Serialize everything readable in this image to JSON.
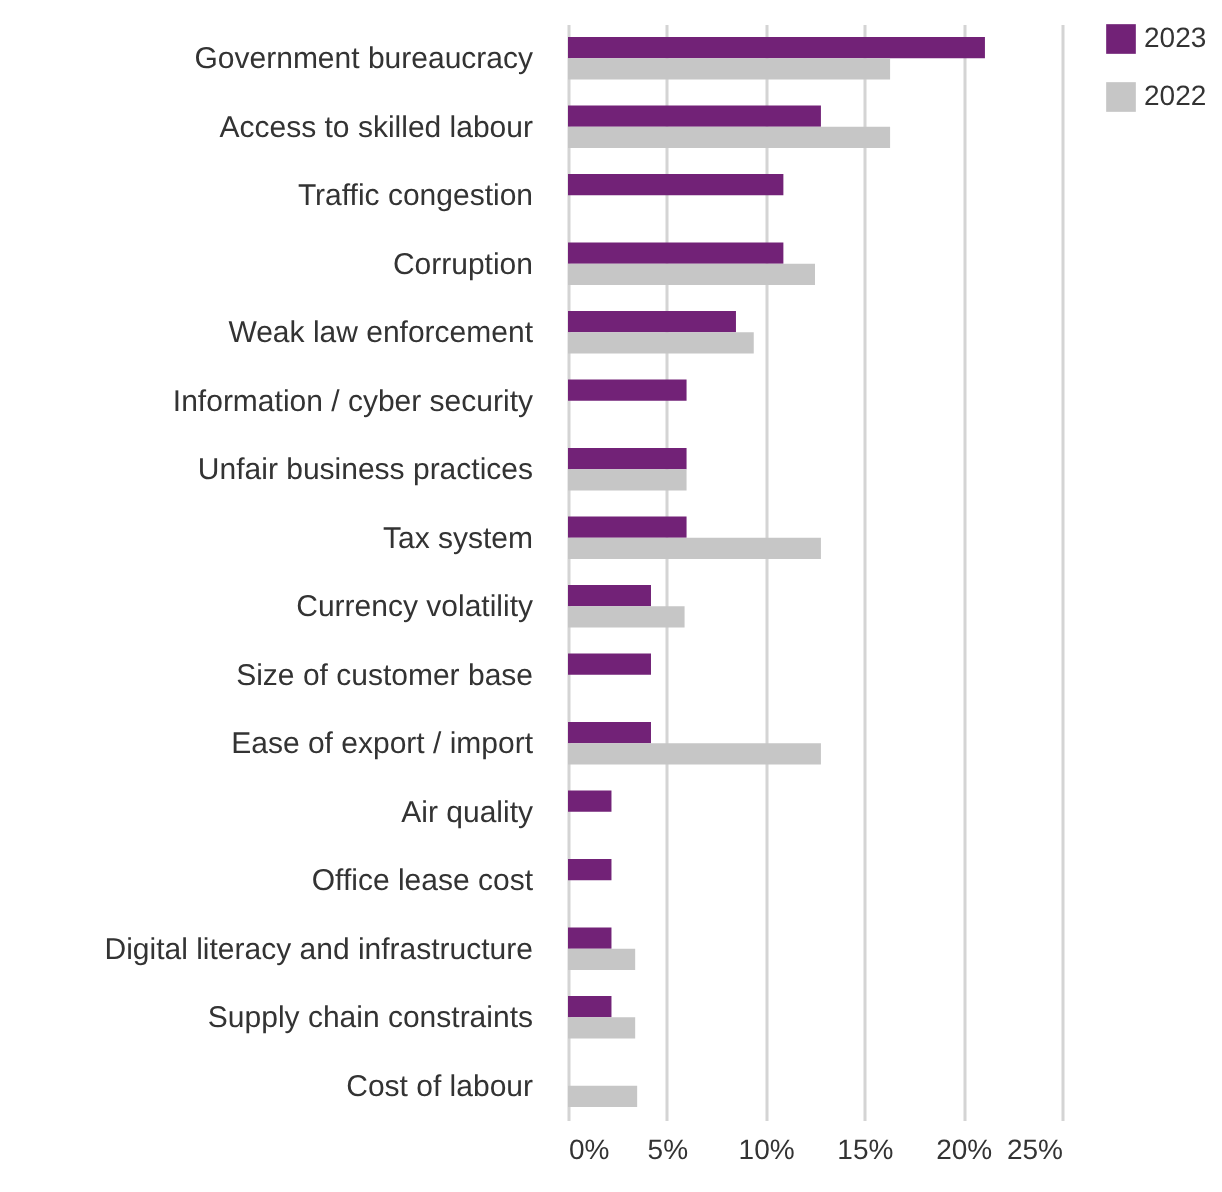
{
  "chart_data": {
    "type": "bar",
    "orientation": "horizontal",
    "categories": [
      "Government bureaucracy",
      "Access to skilled labour",
      "Traffic congestion",
      "Corruption",
      "Weak law enforcement",
      "Information / cyber security",
      "Unfair business practices",
      "Tax system",
      "Currency volatility",
      "Size of customer base",
      "Ease of export / import",
      "Air quality",
      "Office lease cost",
      "Digital literacy and infrastructure",
      "Supply chain constraints",
      "Cost of labour"
    ],
    "series": [
      {
        "name": "2023",
        "color": "#722277",
        "values": [
          21.1,
          12.8,
          10.9,
          10.9,
          8.5,
          6.0,
          6.0,
          6.0,
          4.2,
          4.2,
          4.2,
          2.2,
          2.2,
          2.2,
          2.2,
          null
        ]
      },
      {
        "name": "2022",
        "color": "#c6c6c6",
        "values": [
          16.3,
          16.3,
          null,
          12.5,
          9.4,
          null,
          6.0,
          12.8,
          5.9,
          null,
          12.8,
          null,
          null,
          3.4,
          3.4,
          3.5
        ]
      }
    ],
    "xlim": [
      0,
      25
    ],
    "xticks": [
      {
        "value": 0,
        "label": "0%"
      },
      {
        "value": 5,
        "label": "5%"
      },
      {
        "value": 10,
        "label": "10%"
      },
      {
        "value": 15,
        "label": "15%"
      },
      {
        "value": 20,
        "label": "20%"
      },
      {
        "value": 25,
        "label": "25%"
      }
    ],
    "grid": "x",
    "legend": "right"
  }
}
